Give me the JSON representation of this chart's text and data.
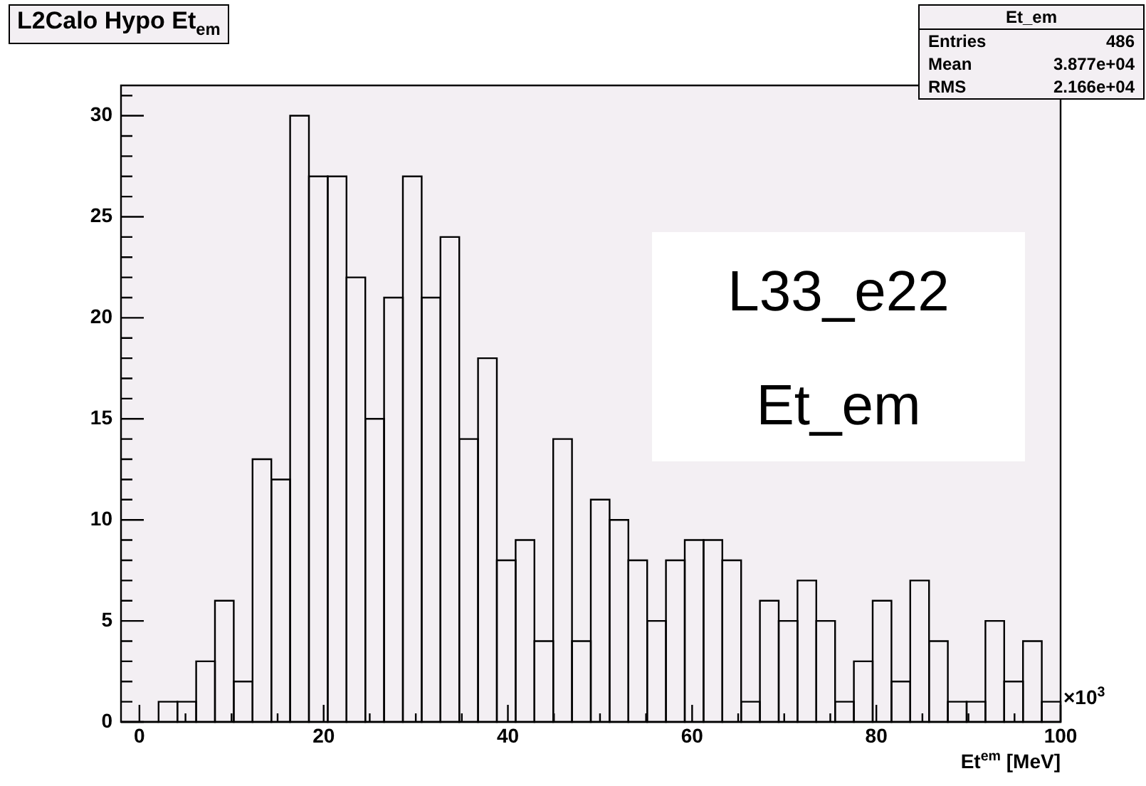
{
  "chart_data": {
    "type": "histogram",
    "title": "L2Calo Hypo Et$_{em}$",
    "xlabel": "Et$^{em}$ [MeV]",
    "bins": [
      -2,
      0.04,
      2.08,
      4.12,
      6.16,
      8.2,
      10.24,
      12.28,
      14.32,
      16.36,
      18.4,
      20.44,
      22.48,
      24.52,
      26.56,
      28.6,
      30.64,
      32.68,
      34.72,
      36.76,
      38.8,
      40.84,
      42.88,
      44.92,
      46.96,
      49,
      51.04,
      53.08,
      55.12,
      57.16,
      59.2,
      61.24,
      63.28,
      65.32,
      67.36,
      69.4,
      71.44,
      73.48,
      75.52,
      77.56,
      79.6,
      81.64,
      83.68,
      85.72,
      87.76,
      89.8,
      91.84,
      93.88,
      95.92,
      97.96,
      100
    ],
    "values": [
      0,
      0,
      1,
      1,
      3,
      6,
      2,
      13,
      12,
      30,
      27,
      27,
      22,
      15,
      21,
      27,
      21,
      24,
      14,
      18,
      8,
      9,
      4,
      14,
      4,
      11,
      10,
      8,
      5,
      8,
      9,
      9,
      8,
      1,
      6,
      5,
      7,
      5,
      1,
      3,
      6,
      2,
      7,
      4,
      1,
      1,
      5,
      2,
      4,
      1
    ],
    "color": "#000000",
    "xlim": [
      -2,
      100
    ],
    "ylim": [
      0,
      31.5
    ],
    "xticks": [
      0,
      {
        "value": 5,
        "label": null
      },
      {
        "value": 10,
        "label": null
      },
      {
        "value": 15,
        "label": null
      },
      20,
      {
        "value": 25,
        "label": null
      },
      {
        "value": 30,
        "label": null
      },
      {
        "value": 35,
        "label": null
      },
      40,
      {
        "value": 45,
        "label": null
      },
      {
        "value": 50,
        "label": null
      },
      {
        "value": 55,
        "label": null
      },
      60,
      {
        "value": 65,
        "label": null
      },
      {
        "value": 70,
        "label": null
      },
      {
        "value": 75,
        "label": null
      },
      80,
      {
        "value": 85,
        "label": null
      },
      {
        "value": 90,
        "label": null
      },
      {
        "value": 95,
        "label": null
      },
      100
    ],
    "yticks": [
      0,
      {
        "value": 1,
        "label": null
      },
      {
        "value": 2,
        "label": null
      },
      {
        "value": 3,
        "label": null
      },
      {
        "value": 4,
        "label": null
      },
      5,
      {
        "value": 6,
        "label": null
      },
      {
        "value": 7,
        "label": null
      },
      {
        "value": 8,
        "label": null
      },
      {
        "value": 9,
        "label": null
      },
      10,
      {
        "value": 11,
        "label": null
      },
      {
        "value": 12,
        "label": null
      },
      {
        "value": 13,
        "label": null
      },
      {
        "value": 14,
        "label": null
      },
      15,
      {
        "value": 16,
        "label": null
      },
      {
        "value": 17,
        "label": null
      },
      {
        "value": 18,
        "label": null
      },
      {
        "value": 19,
        "label": null
      },
      20,
      {
        "value": 21,
        "label": null
      },
      {
        "value": 22,
        "label": null
      },
      {
        "value": 23,
        "label": null
      },
      {
        "value": 24,
        "label": null
      },
      25,
      {
        "value": 26,
        "label": null
      },
      {
        "value": 27,
        "label": null
      },
      {
        "value": 28,
        "label": null
      },
      {
        "value": 29,
        "label": null
      },
      30,
      {
        "value": 31,
        "label": null
      }
    ],
    "grid": false,
    "legend": false,
    "annotations": [
      "×10$^{3}$",
      "Et_em",
      "Entries",
      "486",
      "Mean",
      "3.877e+04",
      "RMS",
      "2.166e+04",
      "L33_e22",
      "Et_em"
    ]
  }
}
